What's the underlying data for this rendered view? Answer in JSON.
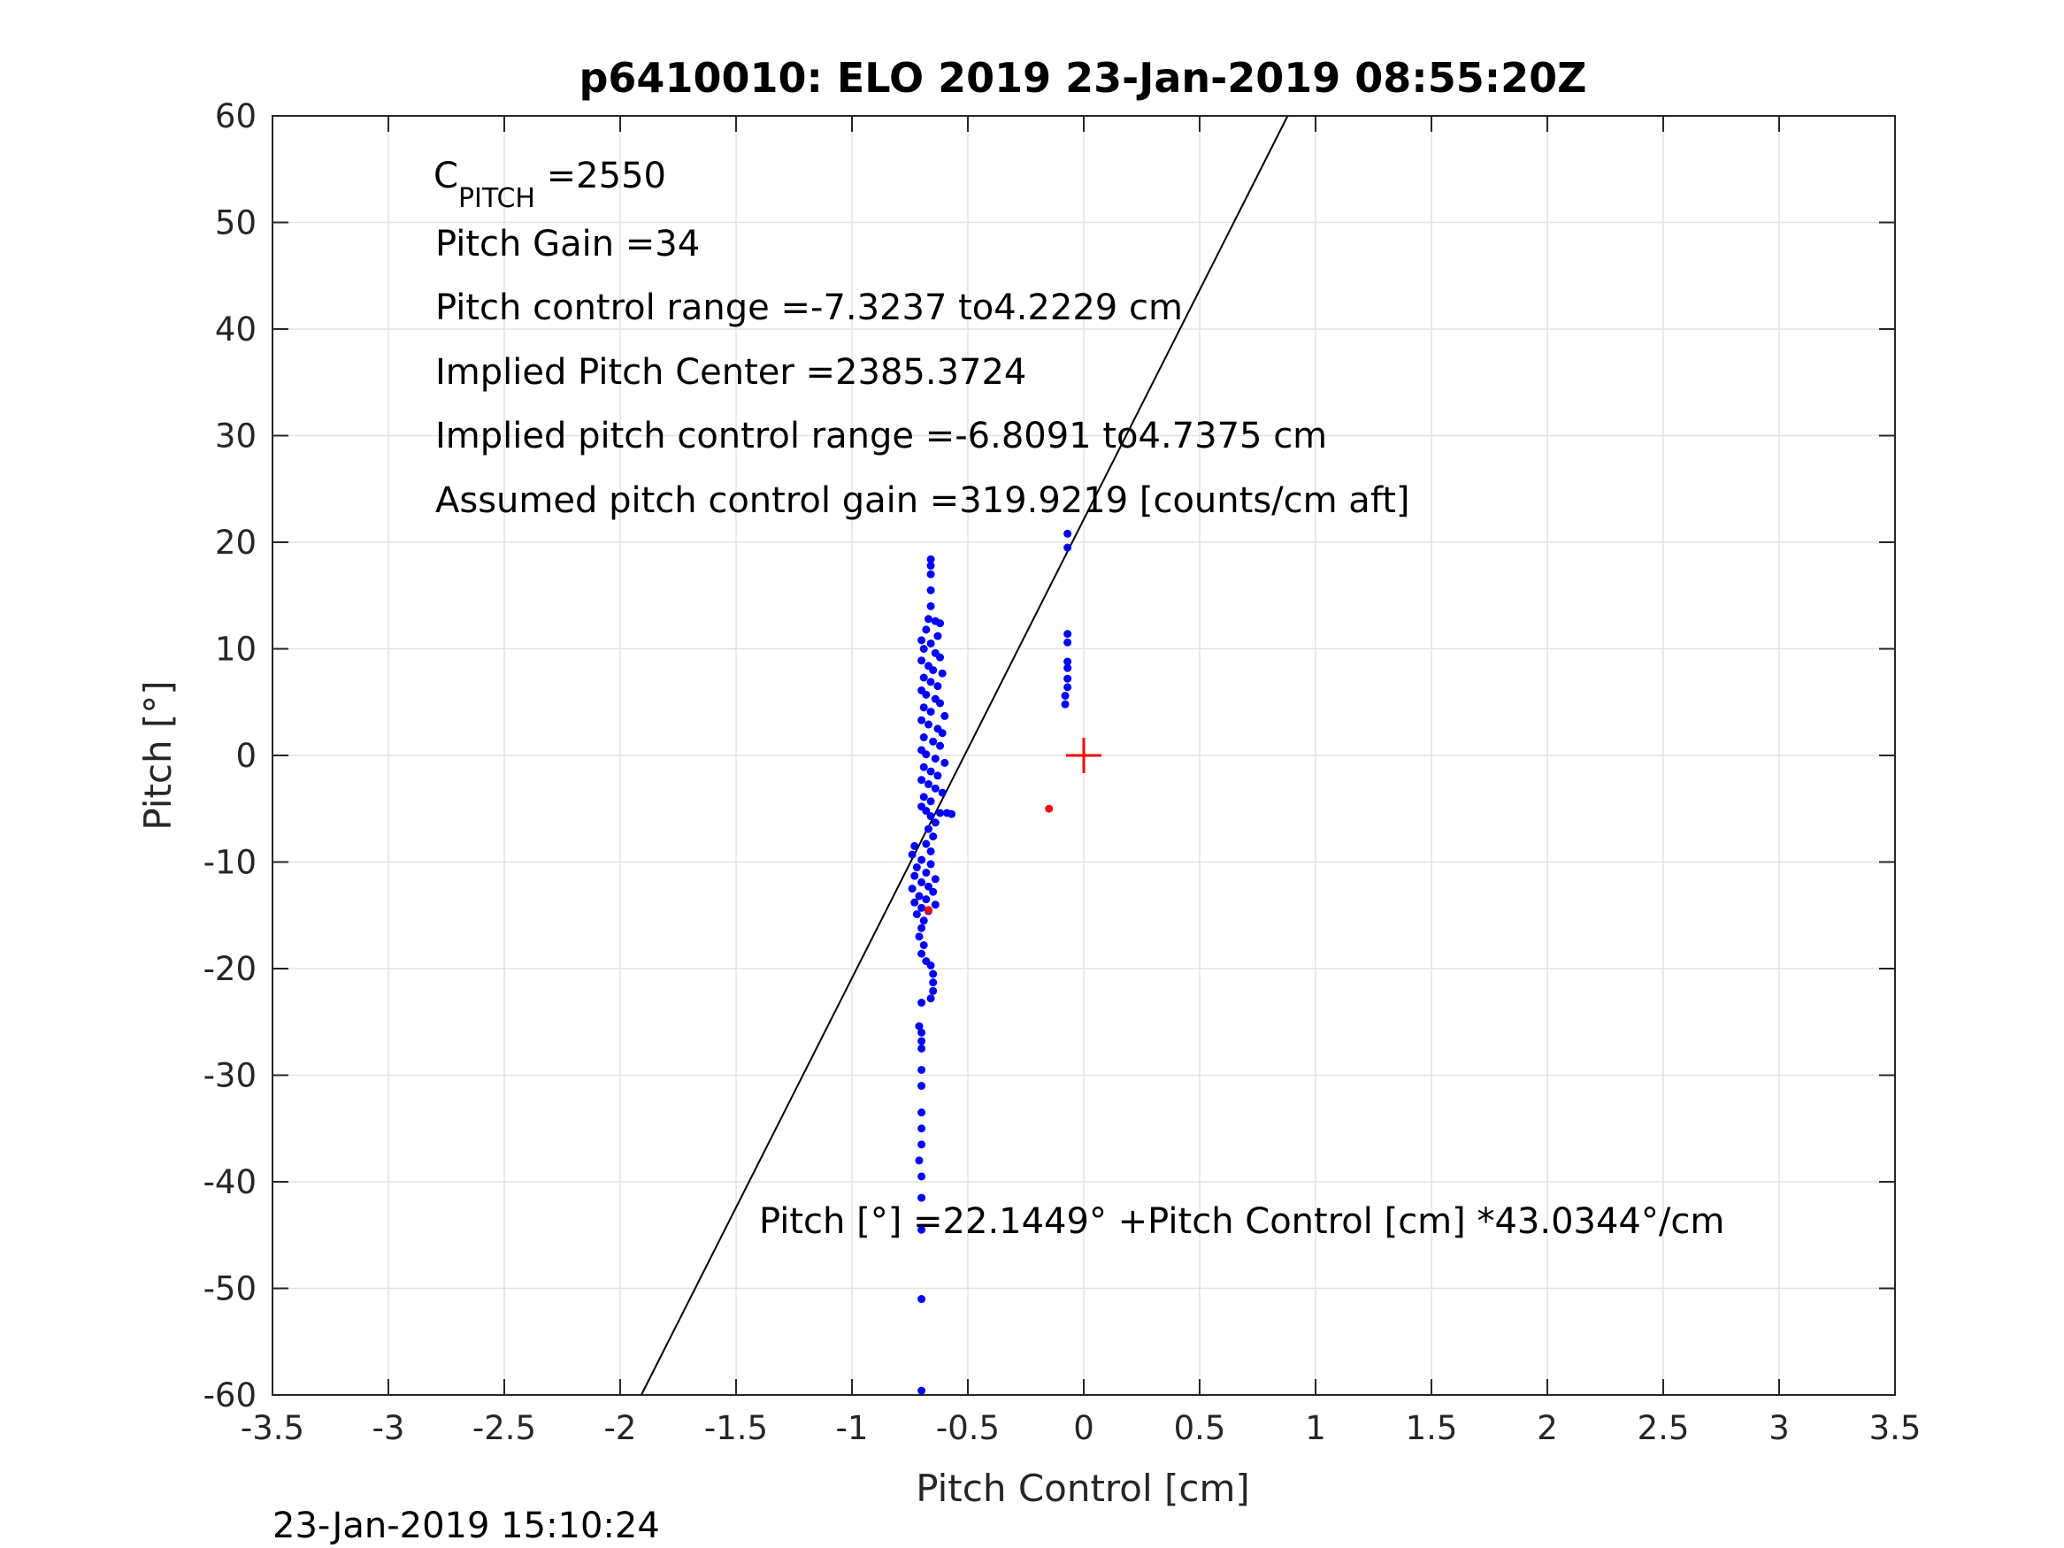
{
  "chart_data": {
    "type": "scatter",
    "title": "p6410010: ELO 2019 23-Jan-2019 08:55:20Z",
    "xlabel": "Pitch Control [cm]",
    "ylabel": "Pitch [°]",
    "xlim": [
      -3.5,
      3.5
    ],
    "ylim": [
      -60,
      60
    ],
    "grid": true,
    "xticks": [
      -3.5,
      -3,
      -2.5,
      -2,
      -1.5,
      -1,
      -0.5,
      0,
      0.5,
      1,
      1.5,
      2,
      2.5,
      3,
      3.5
    ],
    "xtick_labels": [
      "-3.5",
      "-3",
      "-2.5",
      "-2",
      "-1.5",
      "-1",
      "-0.5",
      "0",
      "0.5",
      "1",
      "1.5",
      "2",
      "2.5",
      "3",
      "3.5"
    ],
    "yticks": [
      -60,
      -50,
      -40,
      -30,
      -20,
      -10,
      0,
      10,
      20,
      30,
      40,
      50,
      60
    ],
    "ytick_labels": [
      "-60",
      "-50",
      "-40",
      "-30",
      "-20",
      "-10",
      "0",
      "10",
      "20",
      "30",
      "40",
      "50",
      "60"
    ],
    "colors": {
      "points": "#0000ff",
      "highlight": "#ff0000",
      "fit_line": "#000000",
      "grid": "#e3e3e3",
      "axes": "#262626"
    },
    "series": [
      {
        "marker": "dot",
        "color": "#0000ff",
        "points": [
          [
            -0.66,
            18.4
          ],
          [
            -0.66,
            17.8
          ],
          [
            -0.66,
            17.0
          ],
          [
            -0.66,
            15.5
          ],
          [
            -0.66,
            14.0
          ],
          [
            -0.67,
            12.8
          ],
          [
            -0.64,
            12.6
          ],
          [
            -0.62,
            12.4
          ],
          [
            -0.68,
            11.8
          ],
          [
            -0.63,
            11.2
          ],
          [
            -0.7,
            10.8
          ],
          [
            -0.66,
            10.5
          ],
          [
            -0.69,
            10.0
          ],
          [
            -0.64,
            9.6
          ],
          [
            -0.62,
            9.2
          ],
          [
            -0.7,
            8.9
          ],
          [
            -0.67,
            8.4
          ],
          [
            -0.65,
            8.0
          ],
          [
            -0.61,
            7.7
          ],
          [
            -0.69,
            7.3
          ],
          [
            -0.66,
            6.9
          ],
          [
            -0.63,
            6.5
          ],
          [
            -0.7,
            6.1
          ],
          [
            -0.68,
            5.7
          ],
          [
            -0.64,
            5.3
          ],
          [
            -0.62,
            4.9
          ],
          [
            -0.69,
            4.5
          ],
          [
            -0.66,
            4.1
          ],
          [
            -0.6,
            3.7
          ],
          [
            -0.7,
            3.3
          ],
          [
            -0.67,
            2.9
          ],
          [
            -0.63,
            2.5
          ],
          [
            -0.61,
            2.1
          ],
          [
            -0.69,
            1.7
          ],
          [
            -0.65,
            1.3
          ],
          [
            -0.62,
            0.9
          ],
          [
            -0.7,
            0.5
          ],
          [
            -0.68,
            0.1
          ],
          [
            -0.64,
            -0.3
          ],
          [
            -0.6,
            -0.7
          ],
          [
            -0.69,
            -1.1
          ],
          [
            -0.66,
            -1.5
          ],
          [
            -0.63,
            -1.9
          ],
          [
            -0.7,
            -2.3
          ],
          [
            -0.67,
            -2.7
          ],
          [
            -0.64,
            -3.1
          ],
          [
            -0.61,
            -3.5
          ],
          [
            -0.69,
            -3.9
          ],
          [
            -0.66,
            -4.3
          ],
          [
            -0.7,
            -4.8
          ],
          [
            -0.68,
            -5.2
          ],
          [
            -0.62,
            -5.4
          ],
          [
            -0.59,
            -5.4
          ],
          [
            -0.57,
            -5.5
          ],
          [
            -0.66,
            -5.7
          ],
          [
            -0.64,
            -6.3
          ],
          [
            -0.67,
            -6.9
          ],
          [
            -0.65,
            -7.6
          ],
          [
            -0.68,
            -8.3
          ],
          [
            -0.66,
            -9.0
          ],
          [
            -0.73,
            -8.5
          ],
          [
            -0.74,
            -9.3
          ],
          [
            -0.7,
            -9.8
          ],
          [
            -0.66,
            -10.2
          ],
          [
            -0.72,
            -10.5
          ],
          [
            -0.68,
            -11.0
          ],
          [
            -0.73,
            -11.3
          ],
          [
            -0.64,
            -11.6
          ],
          [
            -0.7,
            -11.9
          ],
          [
            -0.67,
            -12.3
          ],
          [
            -0.74,
            -12.5
          ],
          [
            -0.65,
            -12.8
          ],
          [
            -0.71,
            -13.2
          ],
          [
            -0.68,
            -13.5
          ],
          [
            -0.73,
            -13.8
          ],
          [
            -0.64,
            -14.0
          ],
          [
            -0.7,
            -14.3
          ],
          [
            -0.67,
            -14.6
          ],
          [
            -0.72,
            -14.9
          ],
          [
            -0.69,
            -15.5
          ],
          [
            -0.7,
            -16.2
          ],
          [
            -0.71,
            -17.0
          ],
          [
            -0.69,
            -17.8
          ],
          [
            -0.7,
            -18.6
          ],
          [
            -0.68,
            -19.3
          ],
          [
            -0.66,
            -19.7
          ],
          [
            -0.65,
            -20.5
          ],
          [
            -0.65,
            -21.3
          ],
          [
            -0.65,
            -22.1
          ],
          [
            -0.66,
            -22.8
          ],
          [
            -0.7,
            -23.2
          ],
          [
            -0.71,
            -25.4
          ],
          [
            -0.7,
            -26.0
          ],
          [
            -0.7,
            -26.8
          ],
          [
            -0.7,
            -27.5
          ],
          [
            -0.7,
            -29.5
          ],
          [
            -0.7,
            -31.0
          ],
          [
            -0.7,
            -33.5
          ],
          [
            -0.7,
            -35.0
          ],
          [
            -0.7,
            -36.5
          ],
          [
            -0.71,
            -38.0
          ],
          [
            -0.7,
            -39.5
          ],
          [
            -0.7,
            -41.5
          ],
          [
            -0.7,
            -44.5
          ],
          [
            -0.7,
            -51.0
          ],
          [
            -0.7,
            -59.6
          ],
          [
            -0.07,
            20.8
          ],
          [
            -0.07,
            19.5
          ],
          [
            -0.07,
            11.4
          ],
          [
            -0.07,
            10.6
          ],
          [
            -0.07,
            8.8
          ],
          [
            -0.07,
            8.2
          ],
          [
            -0.07,
            7.2
          ],
          [
            -0.07,
            6.4
          ],
          [
            -0.08,
            5.6
          ],
          [
            -0.08,
            4.8
          ]
        ]
      },
      {
        "marker": "dot",
        "color": "#ff0000",
        "points": [
          [
            -0.15,
            -5.0
          ],
          [
            -0.67,
            -14.5
          ]
        ]
      },
      {
        "marker": "plus",
        "color": "#ff0000",
        "points": [
          [
            0,
            0
          ]
        ]
      },
      {
        "marker": "line",
        "color": "#000000",
        "intercept": 22.1449,
        "slope": 43.0344
      }
    ],
    "annotations": [
      {
        "text": "C",
        "sub": "PITCH",
        "tail": " =2550"
      },
      {
        "text": "Pitch Gain =34"
      },
      {
        "text": "Pitch control range =-7.3237 to4.2229 cm"
      },
      {
        "text": "Implied Pitch Center =2385.3724"
      },
      {
        "text": "Implied pitch control range =-6.8091 to4.7375 cm"
      },
      {
        "text": "Assumed pitch control gain =319.9219 [counts/cm aft]"
      },
      {
        "text": "Pitch [°] =22.1449° +Pitch Control [cm] *43.0344°/cm"
      }
    ]
  },
  "footer": {
    "timestamp": "23-Jan-2019 15:10:24"
  }
}
